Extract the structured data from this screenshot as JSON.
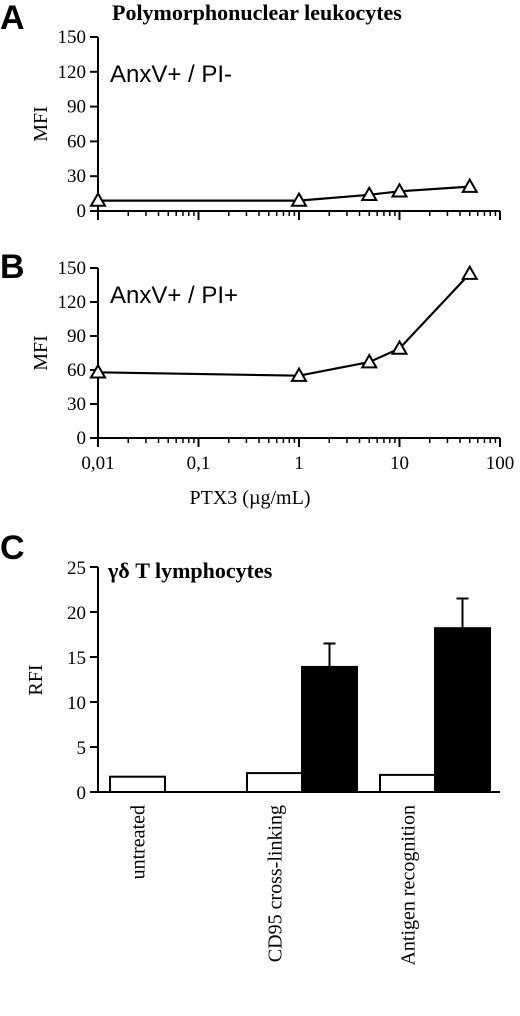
{
  "chart_data": [
    {
      "panel": "A",
      "type": "line",
      "title": "Polymorphonuclear leukocytes",
      "inset_label": "AnxV+ / PI-",
      "xlabel": "",
      "ylabel": "MFI",
      "xscale": "log",
      "xlim": [
        0.01,
        100
      ],
      "ylim": [
        0,
        150
      ],
      "yticks": [
        "0",
        "30",
        "60",
        "90",
        "120",
        "150"
      ],
      "marker": "open-triangle",
      "series": [
        {
          "x": [
            0.01,
            1,
            5,
            10,
            50
          ],
          "y": [
            9,
            9,
            14,
            17,
            21
          ]
        }
      ]
    },
    {
      "panel": "B",
      "type": "line",
      "title": "",
      "inset_label": "AnxV+ / PI+",
      "xlabel": "PTX3 (µg/mL)",
      "ylabel": "MFI",
      "xscale": "log",
      "xlim": [
        0.01,
        100
      ],
      "ylim": [
        0,
        150
      ],
      "yticks": [
        "0",
        "30",
        "60",
        "90",
        "120",
        "150"
      ],
      "xticks": [
        "0,01",
        "0,1",
        "1",
        "10",
        "100"
      ],
      "marker": "open-triangle",
      "series": [
        {
          "x": [
            0.01,
            1,
            5,
            10,
            50
          ],
          "y": [
            58,
            55,
            67,
            79,
            145
          ]
        }
      ]
    },
    {
      "panel": "C",
      "type": "bar",
      "title": "γδ  T lymphocytes",
      "xlabel": "",
      "ylabel": "RFI",
      "ylim": [
        0,
        25
      ],
      "yticks": [
        "0",
        "5",
        "10",
        "15",
        "20",
        "25"
      ],
      "categories": [
        "untreated",
        "CD95 cross-linking",
        "Antigen recognition"
      ],
      "series": [
        {
          "fill": "#ffffff",
          "values": [
            1.7,
            2.1,
            1.9
          ],
          "errors": [
            0,
            0,
            0
          ]
        },
        {
          "fill": "#000000",
          "values": [
            null,
            13.9,
            18.2
          ],
          "errors": [
            null,
            2.6,
            3.3
          ]
        }
      ]
    }
  ]
}
